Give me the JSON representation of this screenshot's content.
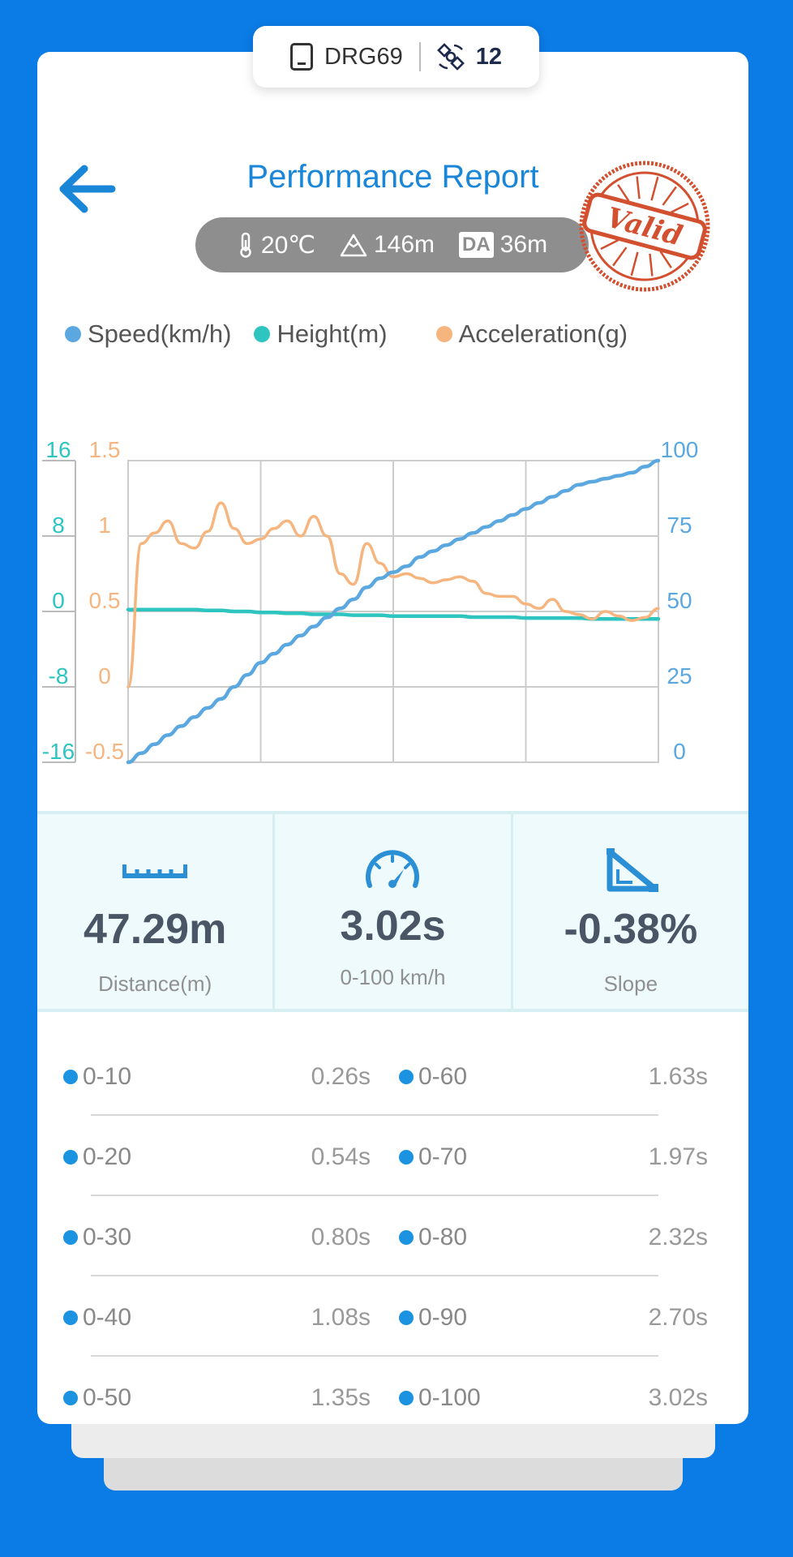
{
  "device": {
    "name": "DRG69",
    "satellites": "12"
  },
  "header": {
    "title": "Performance Report",
    "stamp_text": "Valid"
  },
  "conditions": {
    "temperature": "20℃",
    "altitude": "146m",
    "da_label": "DA",
    "density_altitude": "36m"
  },
  "legend": {
    "speed": "Speed(km/h)",
    "height": "Height(m)",
    "acceleration": "Acceleration(g)"
  },
  "colors": {
    "speed": "#5ba8e0",
    "height": "#2ec4c0",
    "acceleration": "#f6b57e",
    "accent": "#1a86d8"
  },
  "chart_data": {
    "type": "line",
    "x": [
      0,
      1,
      2,
      3,
      4,
      5,
      6,
      7,
      8,
      9,
      10,
      11,
      12,
      13,
      14,
      15,
      16,
      17,
      18,
      19,
      20,
      21,
      22,
      23,
      24,
      25,
      26,
      27,
      28,
      29,
      30,
      31,
      32,
      33,
      34,
      35,
      36,
      37,
      38,
      39,
      40
    ],
    "series": [
      {
        "name": "Speed(km/h)",
        "axis": "right",
        "values": [
          0,
          3,
          6,
          9,
          12,
          15,
          18,
          21,
          25,
          29,
          33,
          36,
          39,
          42,
          45,
          48,
          51,
          54,
          58,
          61,
          63,
          65,
          68,
          70,
          72,
          74,
          76,
          78,
          80,
          82,
          84,
          86,
          88,
          90,
          92,
          93,
          94,
          95,
          96,
          98,
          100
        ]
      },
      {
        "name": "Height(m)",
        "axis": "left-height",
        "values": [
          0.2,
          0.2,
          0.2,
          0.2,
          0.2,
          0.2,
          0.1,
          0.1,
          0,
          0,
          -0.1,
          -0.1,
          -0.2,
          -0.2,
          -0.3,
          -0.3,
          -0.3,
          -0.4,
          -0.4,
          -0.4,
          -0.5,
          -0.5,
          -0.5,
          -0.5,
          -0.5,
          -0.5,
          -0.6,
          -0.6,
          -0.6,
          -0.6,
          -0.7,
          -0.7,
          -0.7,
          -0.7,
          -0.7,
          -0.8,
          -0.8,
          -0.8,
          -0.8,
          -0.8,
          -0.8
        ]
      },
      {
        "name": "Acceleration(g)",
        "axis": "left-accel",
        "values": [
          0,
          0.95,
          1.02,
          1.1,
          0.95,
          0.92,
          1.03,
          1.22,
          1.05,
          0.95,
          0.98,
          1.05,
          1.1,
          1.0,
          1.13,
          1.0,
          0.75,
          0.68,
          0.95,
          0.82,
          0.73,
          0.75,
          0.72,
          0.69,
          0.71,
          0.73,
          0.7,
          0.62,
          0.6,
          0.6,
          0.55,
          0.52,
          0.58,
          0.5,
          0.48,
          0.45,
          0.5,
          0.47,
          0.44,
          0.46,
          0.52
        ]
      }
    ],
    "x_gridlines": 4,
    "y_right": {
      "label": "Speed",
      "ticks": [
        "100",
        "75",
        "50",
        "25",
        "0"
      ],
      "range": [
        0,
        100
      ]
    },
    "y_left_accel": {
      "label": "Acceleration",
      "ticks": [
        "1.5",
        "1",
        "0.5",
        "0",
        "-0.5"
      ],
      "range": [
        -0.5,
        1.5
      ]
    },
    "y_left_height": {
      "label": "Height",
      "ticks": [
        "16",
        "8",
        "0",
        "-8",
        "-16"
      ],
      "range": [
        -16,
        16
      ]
    },
    "grid": true
  },
  "stats": {
    "distance": {
      "value": "47.29m",
      "label": "Distance(m)"
    },
    "time": {
      "value": "3.02s",
      "label": "0-100 km/h"
    },
    "slope": {
      "value": "-0.38%",
      "label": "Slope"
    }
  },
  "splits": [
    {
      "left_label": "0-10",
      "left_time": "0.26s",
      "right_label": "0-60",
      "right_time": "1.63s"
    },
    {
      "left_label": "0-20",
      "left_time": "0.54s",
      "right_label": "0-70",
      "right_time": "1.97s"
    },
    {
      "left_label": "0-30",
      "left_time": "0.80s",
      "right_label": "0-80",
      "right_time": "2.32s"
    },
    {
      "left_label": "0-40",
      "left_time": "1.08s",
      "right_label": "0-90",
      "right_time": "2.70s"
    },
    {
      "left_label": "0-50",
      "left_time": "1.35s",
      "right_label": "0-100",
      "right_time": "3.02s"
    }
  ]
}
